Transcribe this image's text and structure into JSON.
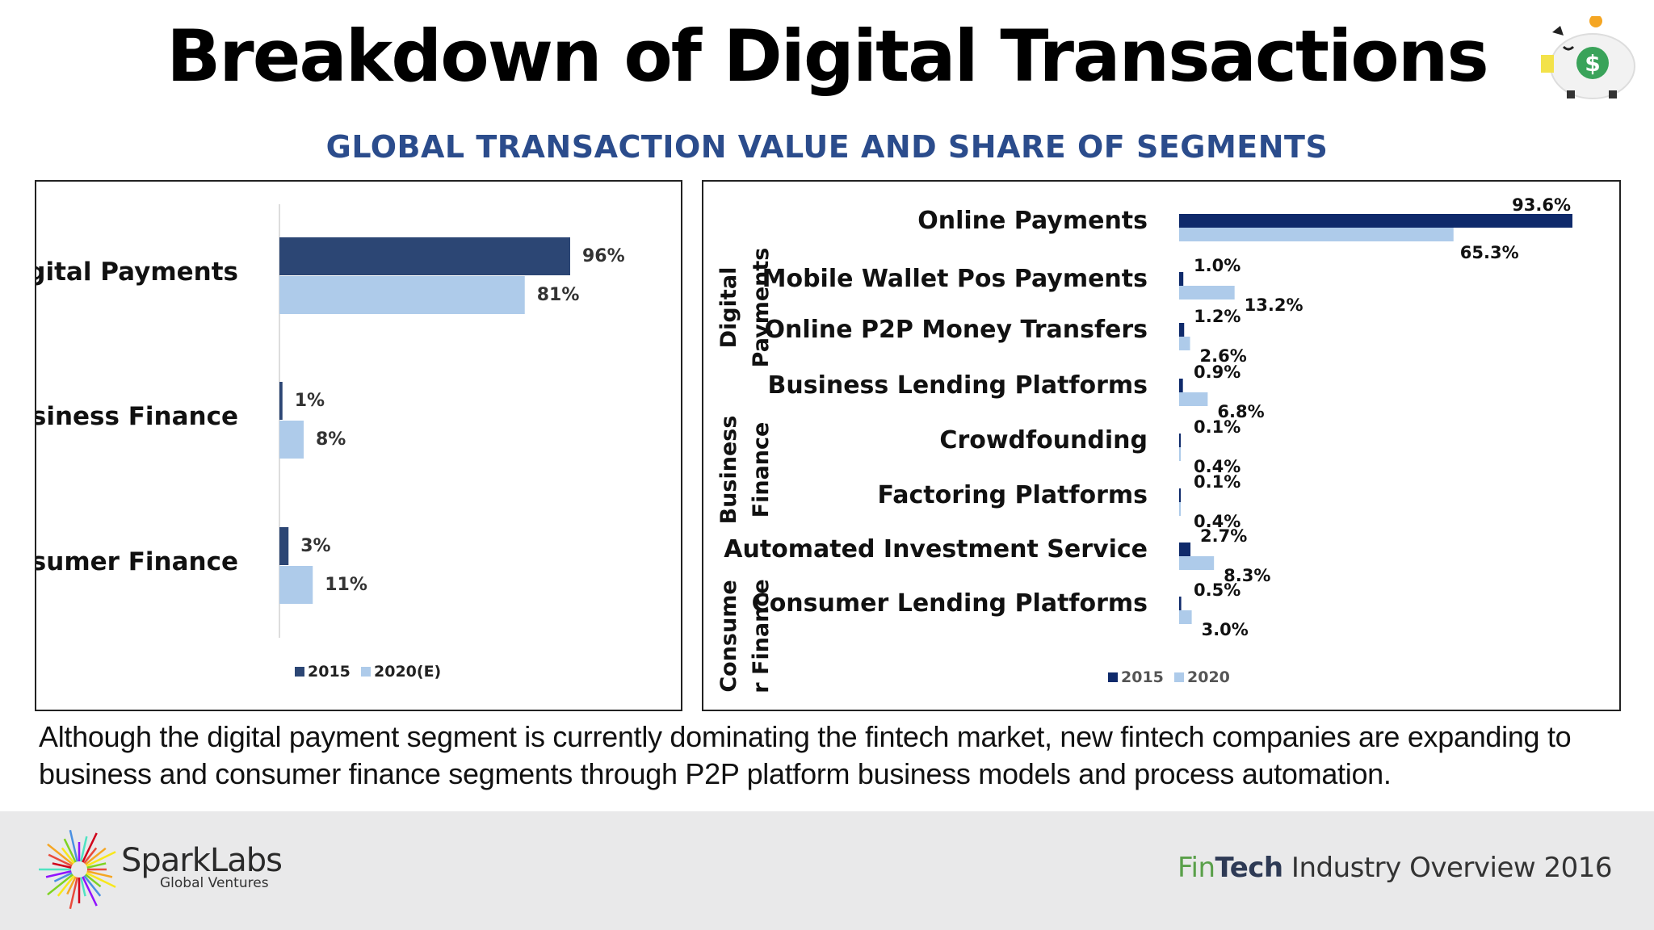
{
  "header": {
    "title": "Breakdown of Digital Transactions",
    "subtitle": "GLOBAL TRANSACTION VALUE AND SHARE OF SEGMENTS"
  },
  "colors": {
    "dark": "#2c4674",
    "light": "#aecbea",
    "right_dark": "#0f2a6b",
    "subtitle": "#2b4c8c"
  },
  "chart_data": [
    {
      "type": "bar",
      "orientation": "horizontal",
      "categories": [
        "Digital Payments",
        "Business Finance",
        "Consumer Finance"
      ],
      "series": [
        {
          "name": "2015",
          "values": [
            96,
            1,
            3
          ],
          "labels": [
            "96%",
            "1%",
            "3%"
          ]
        },
        {
          "name": "2020(E)",
          "values": [
            81,
            8,
            11
          ],
          "labels": [
            "81%",
            "8%",
            "11%"
          ]
        }
      ],
      "xlim": [
        0,
        100
      ],
      "legend": "bottom"
    },
    {
      "type": "bar",
      "orientation": "horizontal",
      "groups": [
        {
          "label": "Digital Payments",
          "categories": [
            "Online Payments",
            "Mobile Wallet Pos Payments",
            "Online P2P Money Transfers"
          ]
        },
        {
          "label": "Business Finance",
          "categories": [
            "Business Lending Platforms",
            "Crowdfounding",
            "Factoring Platforms"
          ]
        },
        {
          "label": "Consume r Finance",
          "categories": [
            "Automated Investment Service",
            "Consumer Lending Platforms"
          ]
        }
      ],
      "categories": [
        "Online Payments",
        "Mobile Wallet Pos Payments",
        "Online P2P Money Transfers",
        "Business Lending Platforms",
        "Crowdfounding",
        "Factoring Platforms",
        "Automated Investment Service",
        "Consumer Lending Platforms"
      ],
      "series": [
        {
          "name": "2015",
          "values": [
            93.6,
            1.0,
            1.2,
            0.9,
            0.1,
            0.1,
            2.7,
            0.5
          ],
          "labels": [
            "93.6%",
            "1.0%",
            "1.2%",
            "0.9%",
            "0.1%",
            "0.1%",
            "2.7%",
            "0.5%"
          ]
        },
        {
          "name": "2020",
          "values": [
            65.3,
            13.2,
            2.6,
            6.8,
            0.4,
            0.4,
            8.3,
            3.0
          ],
          "labels": [
            "65.3%",
            "13.2%",
            "2.6%",
            "6.8%",
            "0.4%",
            "0.4%",
            "8.3%",
            "3.0%"
          ]
        }
      ],
      "xlim": [
        0,
        100
      ],
      "legend": "bottom"
    }
  ],
  "caption": "Although the digital payment segment is currently dominating the fintech market, new fintech companies are expanding to business and consumer finance segments through P2P platform business models and process automation.",
  "footer": {
    "brand": "SparkLabs",
    "brand_sub": "Global Ventures",
    "note_fin": "Fin",
    "note_tech": "Tech",
    "note_rest": " Industry Overview 2016"
  },
  "icons": {
    "piggy": "piggy-bank-icon",
    "logo": "sparklabs-burst-logo"
  }
}
